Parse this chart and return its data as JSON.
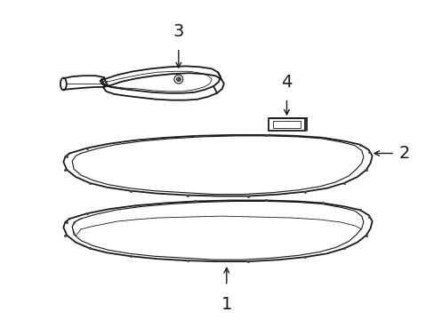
{
  "bg_color": "#ffffff",
  "line_color": "#1a1a1a",
  "lw_main": 1.3,
  "lw_thin": 0.8,
  "lw_xtra": 0.6,
  "fig_width": 4.89,
  "fig_height": 3.6,
  "dot_size": 2.2,
  "dot_color": "#444444"
}
